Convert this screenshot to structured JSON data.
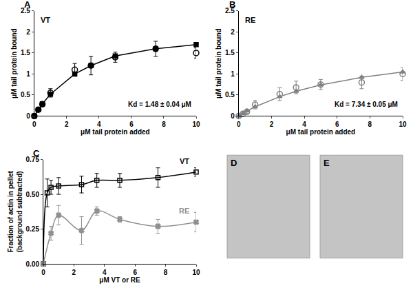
{
  "chart_data": [
    {
      "type": "scatter",
      "title": "A",
      "x_label": "μM tail protein added",
      "y_label": [
        "μM tail protein bound"
      ],
      "xlim": [
        0,
        10
      ],
      "ylim": [
        0,
        2.5
      ],
      "xticks": [
        0,
        2,
        4,
        6,
        8,
        10
      ],
      "yticks": [
        0,
        0.5,
        1,
        1.5,
        2,
        2.5
      ],
      "annotations": [
        "VT",
        "Kd = 1.48 ± 0.04 μM"
      ],
      "series": [
        {
          "type": "scatter",
          "marker": "circle-open",
          "color": "#000000",
          "x": [
            0,
            0.25,
            0.5,
            1,
            2.5,
            3.5,
            5,
            7.5,
            10
          ],
          "values": [
            0,
            0.15,
            0.28,
            0.55,
            1.1,
            1.2,
            1.4,
            1.6,
            1.5
          ],
          "error": [
            0,
            0.02,
            0.05,
            0.1,
            0.15,
            0.22,
            0.12,
            0.18,
            0.12
          ]
        },
        {
          "type": "line",
          "marker": "square",
          "color": "#000000",
          "x": [
            0,
            0.25,
            0.5,
            1,
            2.5,
            3.5,
            5,
            7.5,
            10
          ],
          "values": [
            0,
            0.15,
            0.29,
            0.52,
            1.0,
            1.2,
            1.43,
            1.6,
            1.7
          ]
        }
      ]
    },
    {
      "type": "scatter",
      "title": "B",
      "x_label": "μM tail protein added",
      "y_label": [
        "μM tail protein bound"
      ],
      "xlim": [
        0,
        10
      ],
      "ylim": [
        0,
        2.5
      ],
      "xticks": [
        0,
        2,
        4,
        6,
        8,
        10
      ],
      "yticks": [
        0,
        0.5,
        1,
        1.5,
        2,
        2.5
      ],
      "annotations": [
        "RE",
        "Kd = 7.34 ± 0.05 μM"
      ],
      "series": [
        {
          "type": "scatter",
          "marker": "circle-open",
          "color": "#808080",
          "x": [
            0,
            0.25,
            0.5,
            1,
            2.5,
            3.5,
            5,
            7.5,
            10
          ],
          "values": [
            0,
            0.05,
            0.1,
            0.27,
            0.52,
            0.68,
            0.75,
            0.8,
            1.0
          ],
          "error": [
            0,
            0.02,
            0.04,
            0.1,
            0.15,
            0.15,
            0.12,
            0.15,
            0.15
          ]
        },
        {
          "type": "line",
          "marker": "triangle-up",
          "color": "#808080",
          "x": [
            0,
            0.25,
            0.5,
            1,
            2.5,
            3.5,
            5,
            7.5,
            10
          ],
          "values": [
            0,
            0.06,
            0.12,
            0.22,
            0.46,
            0.59,
            0.74,
            0.92,
            1.05
          ]
        }
      ]
    },
    {
      "type": "line",
      "title": "C",
      "x_label": "μM VT or RE",
      "y_label": [
        "Fraction of actin in pellet",
        "(background subtracted)"
      ],
      "xlim": [
        0,
        10
      ],
      "ylim": [
        0,
        0.75
      ],
      "xticks": [
        0,
        2,
        4,
        6,
        8,
        10
      ],
      "yticks": [
        {
          "value": 0,
          "label": "0.00"
        },
        {
          "value": 0.25,
          "label": "0.25"
        },
        {
          "value": 0.5,
          "label": "0.50"
        },
        {
          "value": 0.75,
          "label": "0.75"
        }
      ],
      "series": [
        {
          "name": "VT",
          "type": "line",
          "marker": "square-open",
          "line_style": "smooth",
          "color": "#000000",
          "x": [
            0,
            0.25,
            0.5,
            1,
            2.5,
            3.5,
            5,
            7.5,
            10
          ],
          "values": [
            0,
            0.51,
            0.55,
            0.56,
            0.57,
            0.6,
            0.6,
            0.62,
            0.66
          ],
          "error": [
            0,
            0.1,
            0.05,
            0.06,
            0.06,
            0.05,
            0.05,
            0.07,
            0.03
          ]
        },
        {
          "name": "RE",
          "type": "line",
          "marker": "x",
          "line_style": "smooth",
          "color": "#909090",
          "x": [
            0,
            0.5,
            1,
            2.5,
            3.5,
            5,
            7.5,
            10
          ],
          "values": [
            0,
            0.22,
            0.35,
            0.24,
            0.38,
            0.32,
            0.27,
            0.3
          ],
          "error": [
            0,
            0.05,
            0.07,
            0.1,
            0.03,
            0.02,
            0.05,
            0.07
          ]
        }
      ]
    },
    {
      "type": "image",
      "title": "D"
    },
    {
      "type": "image",
      "title": "E"
    }
  ]
}
